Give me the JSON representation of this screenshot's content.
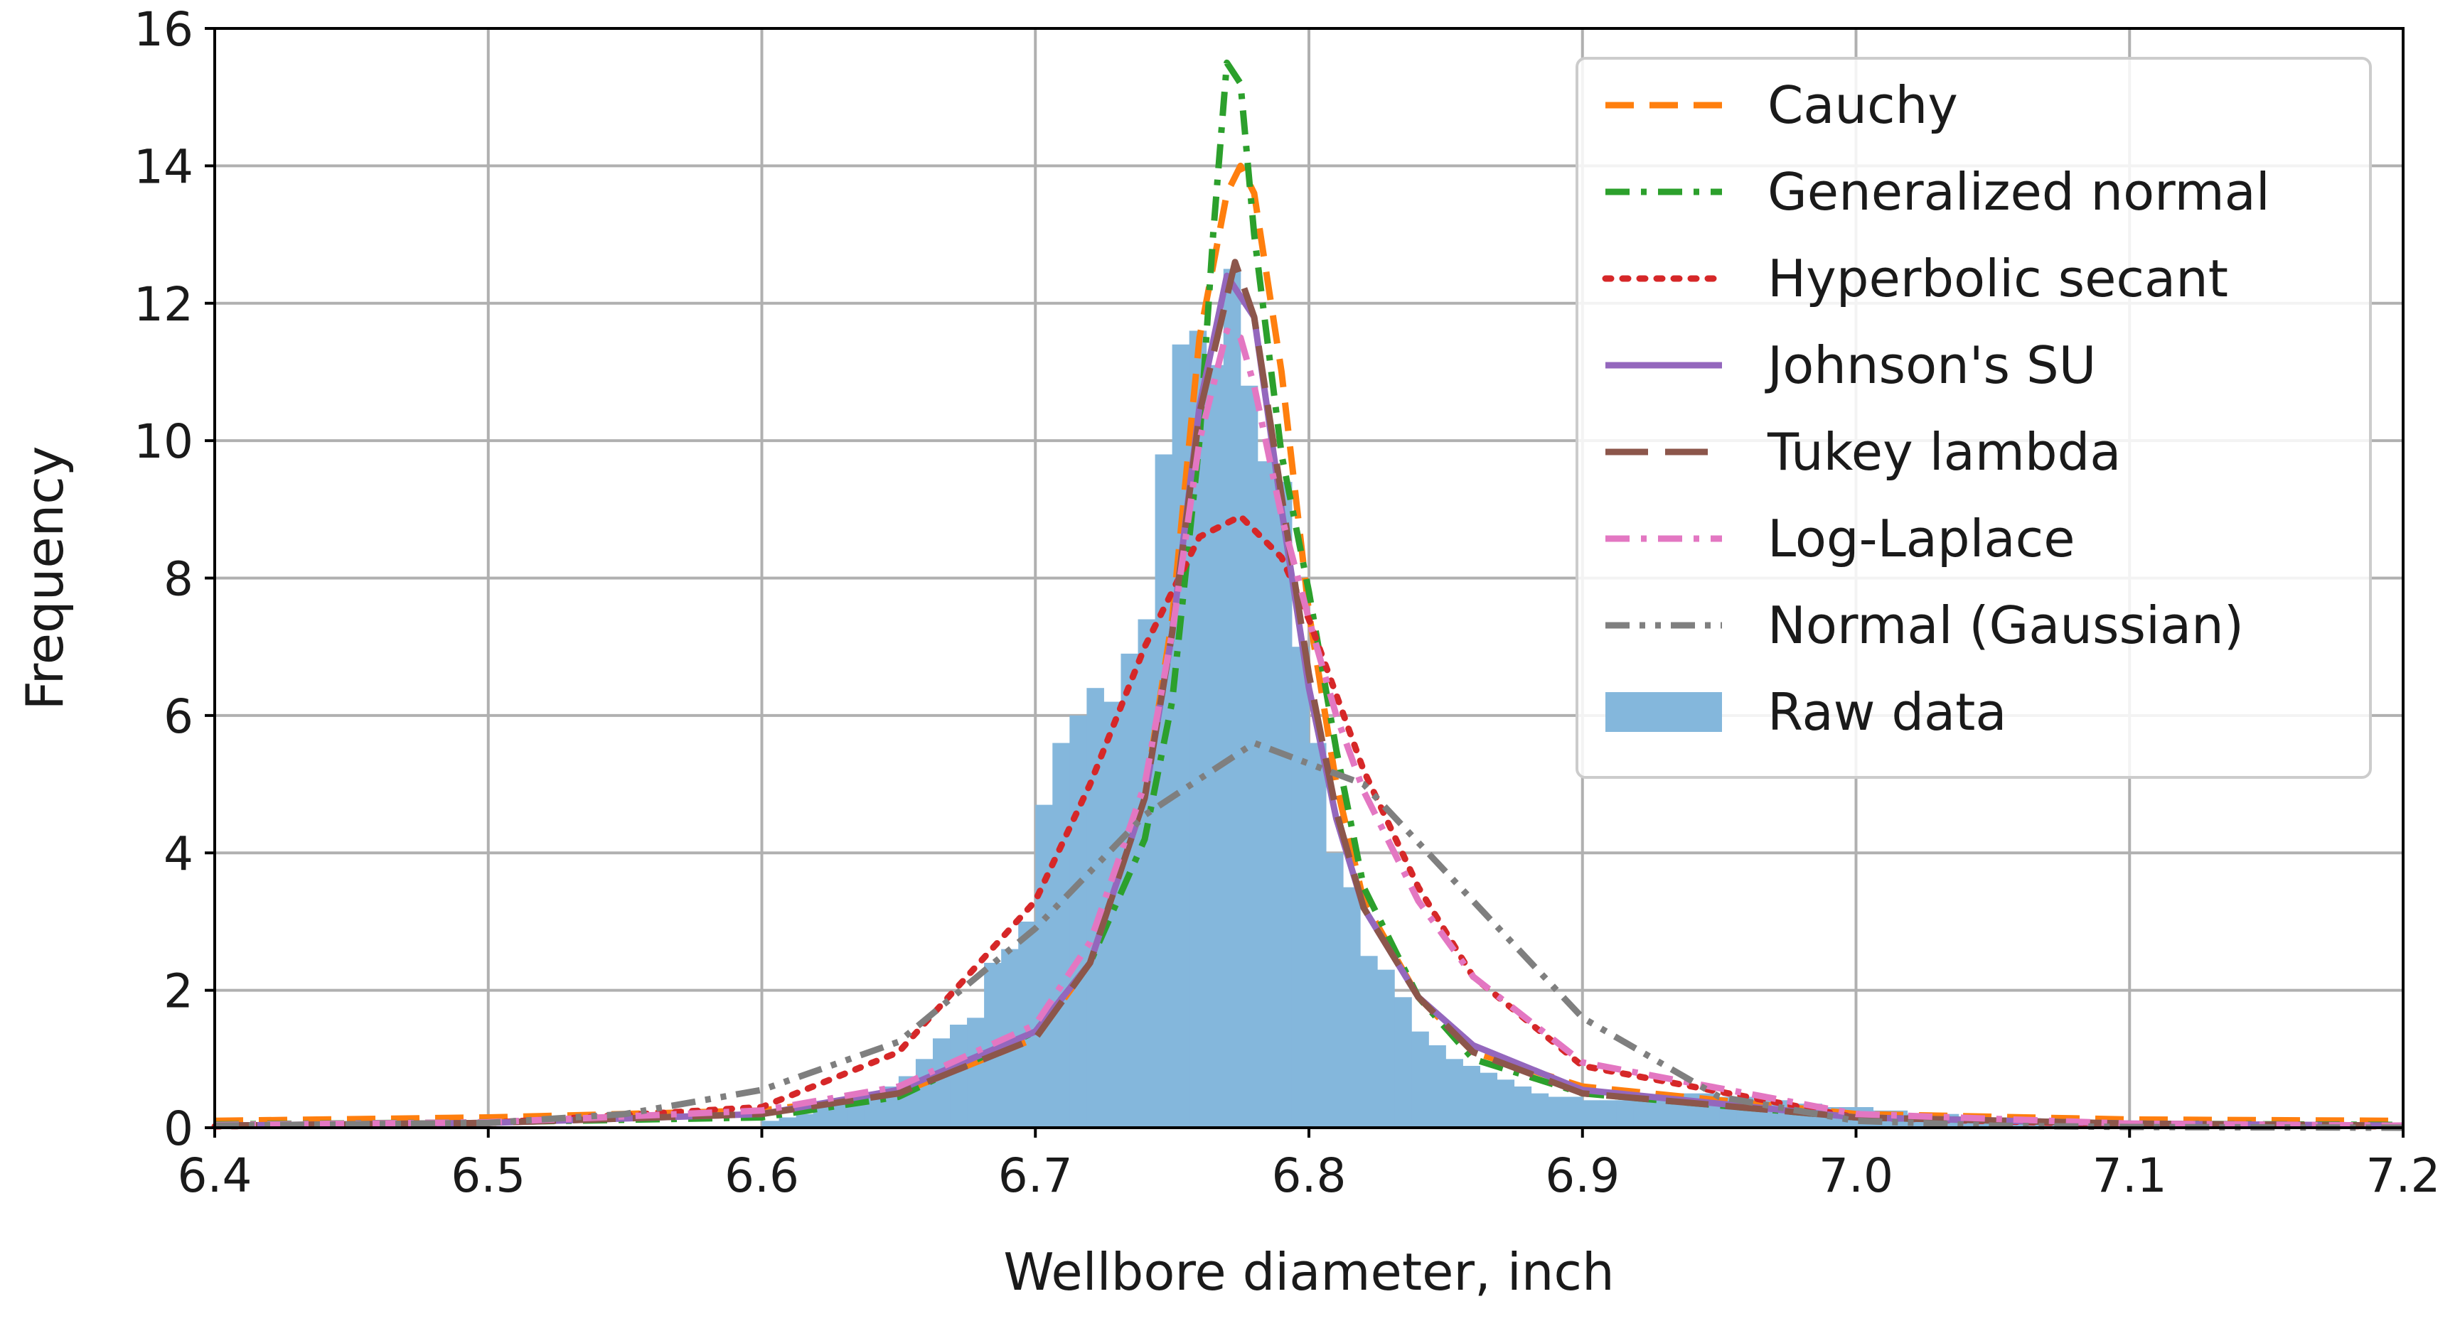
{
  "chart_data": {
    "type": "line",
    "title": "",
    "xlabel": "Wellbore diameter, inch",
    "ylabel": "Frequency",
    "xlim": [
      6.4,
      7.2
    ],
    "ylim": [
      0,
      16
    ],
    "x_ticks": [
      6.4,
      6.5,
      6.6,
      6.7,
      6.8,
      6.9,
      7.0,
      7.1,
      7.2
    ],
    "x_tick_labels": [
      "6.4",
      "6.5",
      "6.6",
      "6.7",
      "6.8",
      "6.9",
      "7.0",
      "7.1",
      "7.2"
    ],
    "y_ticks": [
      0,
      2,
      4,
      6,
      8,
      10,
      12,
      14,
      16
    ],
    "y_tick_labels": [
      "0",
      "2",
      "4",
      "6",
      "8",
      "10",
      "12",
      "14",
      "16"
    ],
    "grid": true,
    "legend_position": "top-right",
    "series": [
      {
        "name": "Cauchy",
        "kind": "line",
        "color": "#ff7f0e",
        "dash": "dashed",
        "x": [
          6.4,
          6.5,
          6.6,
          6.65,
          6.7,
          6.72,
          6.74,
          6.75,
          6.76,
          6.77,
          6.775,
          6.78,
          6.79,
          6.8,
          6.81,
          6.82,
          6.84,
          6.86,
          6.9,
          7.0,
          7.1,
          7.2
        ],
        "y": [
          0.1,
          0.15,
          0.25,
          0.5,
          1.3,
          2.4,
          4.8,
          7.4,
          11.5,
          13.6,
          14.0,
          13.6,
          11.0,
          7.5,
          5.0,
          3.3,
          1.9,
          1.1,
          0.6,
          0.2,
          0.12,
          0.1
        ]
      },
      {
        "name": "Generalized normal",
        "kind": "line",
        "color": "#2ca02c",
        "dash": "dashdot",
        "x": [
          6.4,
          6.5,
          6.6,
          6.65,
          6.7,
          6.72,
          6.74,
          6.75,
          6.76,
          6.765,
          6.77,
          6.775,
          6.78,
          6.79,
          6.8,
          6.81,
          6.82,
          6.84,
          6.86,
          6.9,
          7.0,
          7.1,
          7.2
        ],
        "y": [
          0.05,
          0.08,
          0.15,
          0.45,
          1.4,
          2.4,
          4.2,
          6.2,
          10.0,
          13.0,
          15.5,
          15.2,
          13.0,
          9.8,
          7.8,
          5.5,
          3.5,
          1.9,
          1.0,
          0.5,
          0.15,
          0.06,
          0.04
        ]
      },
      {
        "name": "Hyperbolic secant",
        "kind": "line",
        "color": "#d62728",
        "dash": "dotted",
        "x": [
          6.4,
          6.5,
          6.6,
          6.65,
          6.7,
          6.72,
          6.74,
          6.76,
          6.775,
          6.79,
          6.8,
          6.82,
          6.84,
          6.86,
          6.9,
          7.0,
          7.1,
          7.2
        ],
        "y": [
          0.02,
          0.07,
          0.3,
          1.1,
          3.3,
          5.0,
          7.0,
          8.6,
          8.9,
          8.3,
          7.4,
          5.2,
          3.5,
          2.2,
          0.9,
          0.15,
          0.04,
          0.02
        ]
      },
      {
        "name": "Johnson's SU",
        "kind": "line",
        "color": "#9467bd",
        "dash": "solid",
        "x": [
          6.4,
          6.5,
          6.6,
          6.65,
          6.7,
          6.72,
          6.74,
          6.75,
          6.76,
          6.77,
          6.78,
          6.79,
          6.8,
          6.81,
          6.82,
          6.84,
          6.86,
          6.9,
          7.0,
          7.1,
          7.2
        ],
        "y": [
          0.03,
          0.07,
          0.2,
          0.55,
          1.4,
          2.4,
          4.8,
          7.2,
          10.5,
          12.4,
          11.8,
          9.0,
          6.4,
          4.5,
          3.2,
          1.9,
          1.2,
          0.55,
          0.15,
          0.06,
          0.03
        ]
      },
      {
        "name": "Tukey lambda",
        "kind": "line",
        "color": "#8c564b",
        "dash": "longdash",
        "x": [
          6.4,
          6.5,
          6.6,
          6.65,
          6.7,
          6.72,
          6.74,
          6.75,
          6.76,
          6.773,
          6.78,
          6.79,
          6.8,
          6.81,
          6.82,
          6.84,
          6.86,
          6.9,
          7.0,
          7.1,
          7.2
        ],
        "y": [
          0.03,
          0.07,
          0.2,
          0.5,
          1.3,
          2.4,
          4.8,
          7.2,
          10.4,
          12.6,
          11.8,
          9.2,
          6.6,
          4.6,
          3.2,
          1.9,
          1.1,
          0.5,
          0.15,
          0.06,
          0.03
        ]
      },
      {
        "name": "Log-Laplace",
        "kind": "line",
        "color": "#e377c2",
        "dash": "dashdot",
        "x": [
          6.4,
          6.5,
          6.6,
          6.65,
          6.7,
          6.72,
          6.74,
          6.75,
          6.76,
          6.77,
          6.775,
          6.78,
          6.79,
          6.8,
          6.81,
          6.82,
          6.84,
          6.86,
          6.9,
          7.0,
          7.1,
          7.2
        ],
        "y": [
          0.04,
          0.08,
          0.25,
          0.6,
          1.5,
          2.7,
          5.0,
          7.2,
          10.0,
          11.6,
          11.5,
          10.8,
          8.9,
          7.4,
          6.0,
          4.9,
          3.3,
          2.2,
          0.95,
          0.2,
          0.06,
          0.03
        ]
      },
      {
        "name": "Normal (Gaussian)",
        "kind": "line",
        "color": "#7f7f7f",
        "dash": "dashdotdot",
        "x": [
          6.4,
          6.5,
          6.55,
          6.6,
          6.65,
          6.7,
          6.74,
          6.78,
          6.82,
          6.86,
          6.9,
          6.95,
          7.0,
          7.05,
          7.1,
          7.2
        ],
        "y": [
          0.03,
          0.07,
          0.2,
          0.55,
          1.25,
          2.9,
          4.55,
          5.6,
          5.0,
          3.3,
          1.6,
          0.45,
          0.1,
          0.03,
          0.01,
          0.0
        ]
      },
      {
        "name": "Raw data",
        "kind": "histogram",
        "color": "#84b7dc",
        "bin_width": 0.00625,
        "bin_starts": [
          6.6,
          6.60625,
          6.6125,
          6.61875,
          6.625,
          6.63125,
          6.6375,
          6.64375,
          6.65,
          6.65625,
          6.6625,
          6.66875,
          6.675,
          6.68125,
          6.6875,
          6.69375,
          6.7,
          6.70625,
          6.7125,
          6.71875,
          6.725,
          6.73125,
          6.7375,
          6.74375,
          6.75,
          6.75625,
          6.7625,
          6.76875,
          6.775,
          6.78125,
          6.7875,
          6.79375,
          6.8,
          6.80625,
          6.8125,
          6.81875,
          6.825,
          6.83125,
          6.8375,
          6.84375,
          6.85,
          6.85625,
          6.8625,
          6.86875,
          6.875,
          6.88125,
          6.8875,
          6.89375,
          6.9,
          6.90625,
          6.9125,
          6.91875,
          6.925,
          6.93125,
          6.9375,
          6.94375,
          6.95,
          6.95625,
          6.9625,
          6.96875,
          6.975,
          6.98125,
          6.9875,
          6.99375,
          7.0,
          7.00625,
          7.0125,
          7.01875,
          7.025,
          7.03125,
          7.0375,
          7.04375,
          7.05,
          7.05625,
          7.0625,
          7.06875,
          7.075,
          7.08125,
          7.0875,
          7.09375
        ],
        "values": [
          0.1,
          0.15,
          0.2,
          0.3,
          0.35,
          0.4,
          0.5,
          0.6,
          0.75,
          1.0,
          1.3,
          1.5,
          1.6,
          2.4,
          2.6,
          3.0,
          4.7,
          5.6,
          6.0,
          6.4,
          6.2,
          6.9,
          7.4,
          9.8,
          11.4,
          11.6,
          11.1,
          12.5,
          10.8,
          9.7,
          9.4,
          7.0,
          5.6,
          4.0,
          3.5,
          2.5,
          2.3,
          1.9,
          1.4,
          1.2,
          1.0,
          0.9,
          0.8,
          0.7,
          0.6,
          0.5,
          0.45,
          0.45,
          0.4,
          0.4,
          0.4,
          0.4,
          0.45,
          0.5,
          0.5,
          0.5,
          0.45,
          0.45,
          0.4,
          0.4,
          0.35,
          0.35,
          0.3,
          0.3,
          0.3,
          0.25,
          0.25,
          0.2,
          0.2,
          0.2,
          0.15,
          0.15,
          0.15,
          0.1,
          0.1,
          0.1,
          0.1,
          0.1,
          0.1,
          0.1
        ]
      }
    ]
  }
}
